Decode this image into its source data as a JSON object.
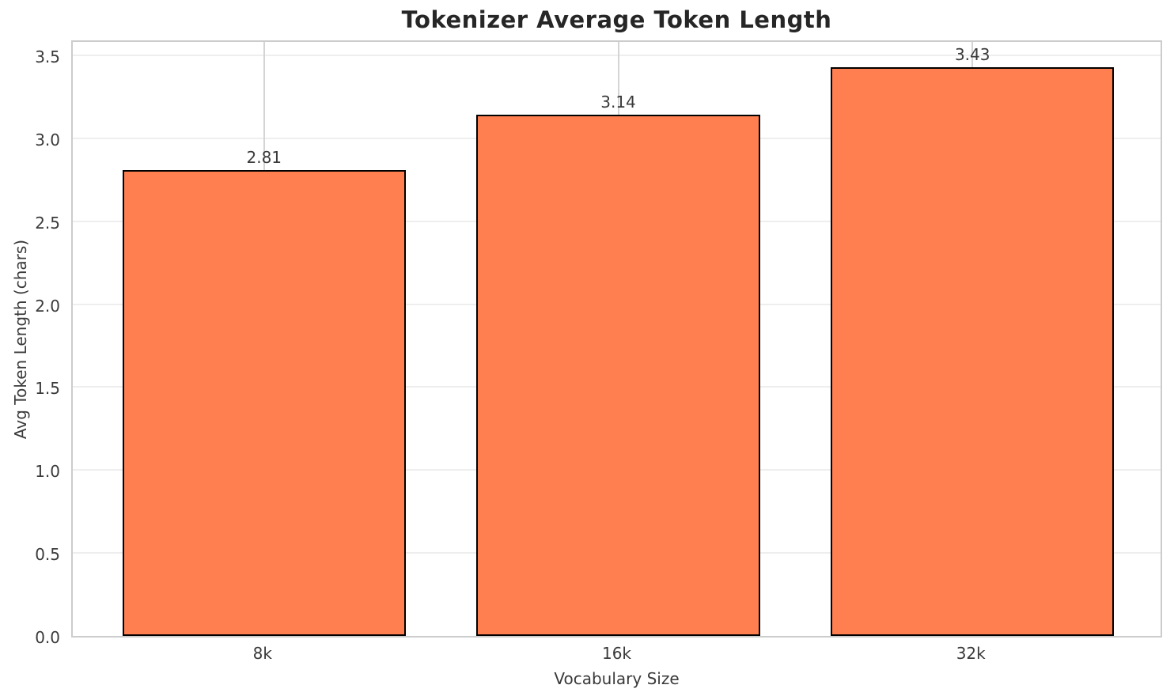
{
  "chart_data": {
    "type": "bar",
    "title": "Tokenizer Average Token Length",
    "xlabel": "Vocabulary Size",
    "ylabel": "Avg Token Length (chars)",
    "categories": [
      "8k",
      "16k",
      "32k"
    ],
    "values": [
      2.81,
      3.14,
      3.43
    ],
    "value_labels": [
      "2.81",
      "3.14",
      "3.43"
    ],
    "yticks": [
      0.0,
      0.5,
      1.0,
      1.5,
      2.0,
      2.5,
      3.0,
      3.5
    ],
    "ytick_labels": [
      "0.0",
      "0.5",
      "1.0",
      "1.5",
      "2.0",
      "2.5",
      "3.0",
      "3.5"
    ],
    "ylim": [
      0,
      3.6
    ],
    "grid": true,
    "legend_position": "none",
    "bar_color": "#FF7F50",
    "bar_edge_color": "#000000",
    "grid_color_horizontal": "#eeeeee",
    "grid_color_vertical": "#d4d4d4",
    "spine_color": "#cccccc",
    "text_color": "#3a3a3a",
    "title_color": "#262626"
  }
}
